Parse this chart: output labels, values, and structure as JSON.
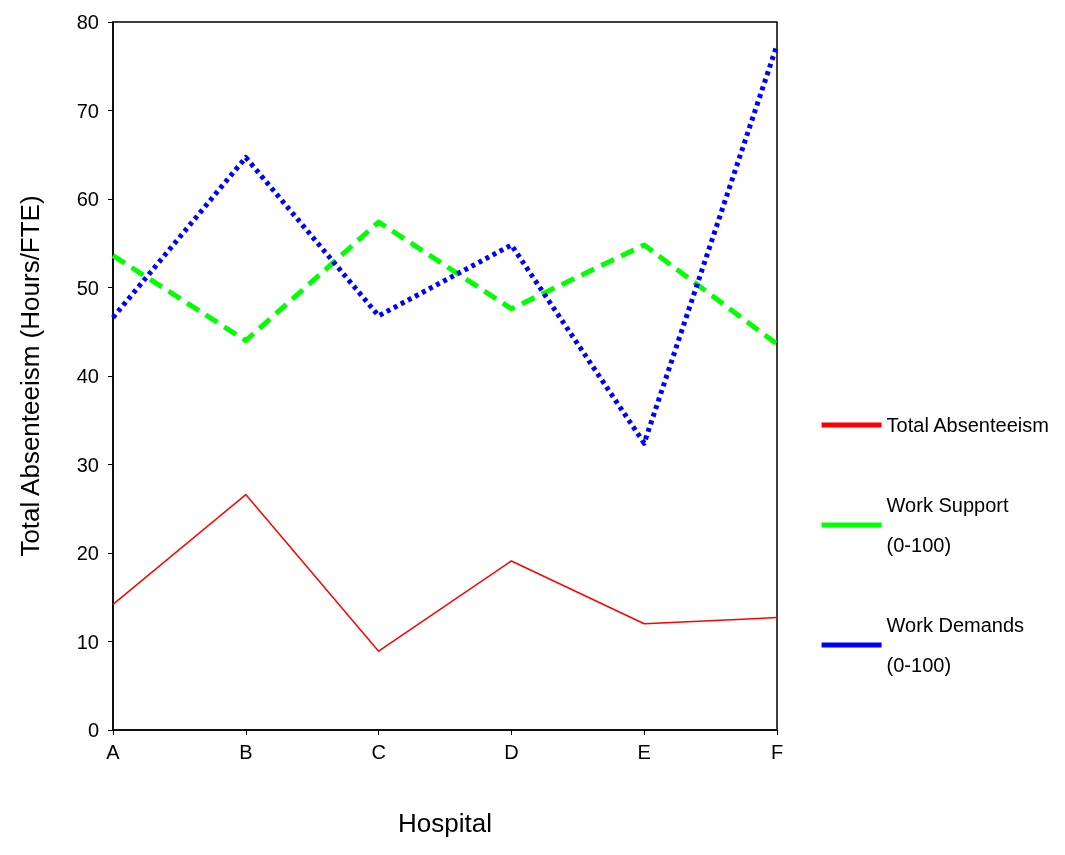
{
  "chart_data": {
    "type": "line",
    "xlabel": "Hospital",
    "ylabel": "Total Absenteeism (Hours/FTE)",
    "categories": [
      "A",
      "B",
      "C",
      "D",
      "E",
      "F"
    ],
    "series": [
      {
        "name": "Total Absenteeism",
        "color": "#ff0000",
        "line_style": "solid",
        "values": [
          14.2,
          26.6,
          8.9,
          19.1,
          12.0,
          12.7
        ]
      },
      {
        "name": "Work Support\n(0-100)",
        "color": "#00ff00",
        "line_style": "dashed",
        "values": [
          53.6,
          44.0,
          57.4,
          47.6,
          54.8,
          43.6
        ]
      },
      {
        "name": "Work Demands\n(0-100)",
        "color": "#0000ff",
        "line_style": "dotted",
        "values": [
          46.6,
          64.7,
          46.8,
          54.8,
          32.4,
          77.4
        ]
      }
    ],
    "ylim": [
      0,
      80
    ],
    "yticks": [
      0,
      10,
      20,
      30,
      40,
      50,
      60,
      70,
      80
    ],
    "grid": false,
    "legend": "right",
    "marker": "none"
  }
}
